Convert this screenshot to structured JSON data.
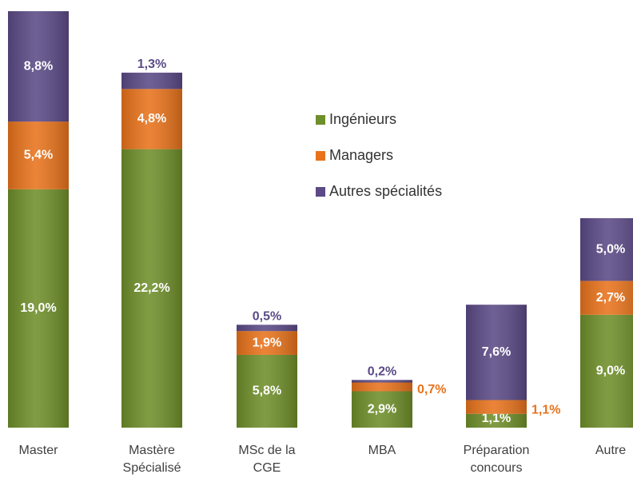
{
  "chart_data": {
    "type": "stacked-bar",
    "categories": [
      "Master",
      "Mastère Spécialisé",
      "MSc de la CGE",
      "MBA",
      "Préparation concours",
      "Autre"
    ],
    "series": [
      {
        "name": "Ingénieurs",
        "color": "#6f8f2a",
        "values": [
          19.0,
          22.2,
          5.8,
          2.9,
          1.1,
          9.0
        ],
        "value_labels": [
          "19,0%",
          "22,2%",
          "5,8%",
          "2,9%",
          "1,1%",
          "9,0%"
        ]
      },
      {
        "name": "Managers",
        "color": "#e8731c",
        "values": [
          5.4,
          4.8,
          1.9,
          0.7,
          1.1,
          2.7
        ],
        "value_labels": [
          "5,4%",
          "4,8%",
          "1,9%",
          "0,7%",
          "1,1%",
          "2,7%"
        ]
      },
      {
        "name": "Autres spécialités",
        "color": "#5b4a86",
        "values": [
          8.8,
          1.3,
          0.5,
          0.2,
          7.6,
          5.0
        ],
        "value_labels": [
          "8,8%",
          "1,3%",
          "0,5%",
          "0,2%",
          "7,6%",
          "5,0%"
        ]
      }
    ],
    "legend": "center"
  }
}
